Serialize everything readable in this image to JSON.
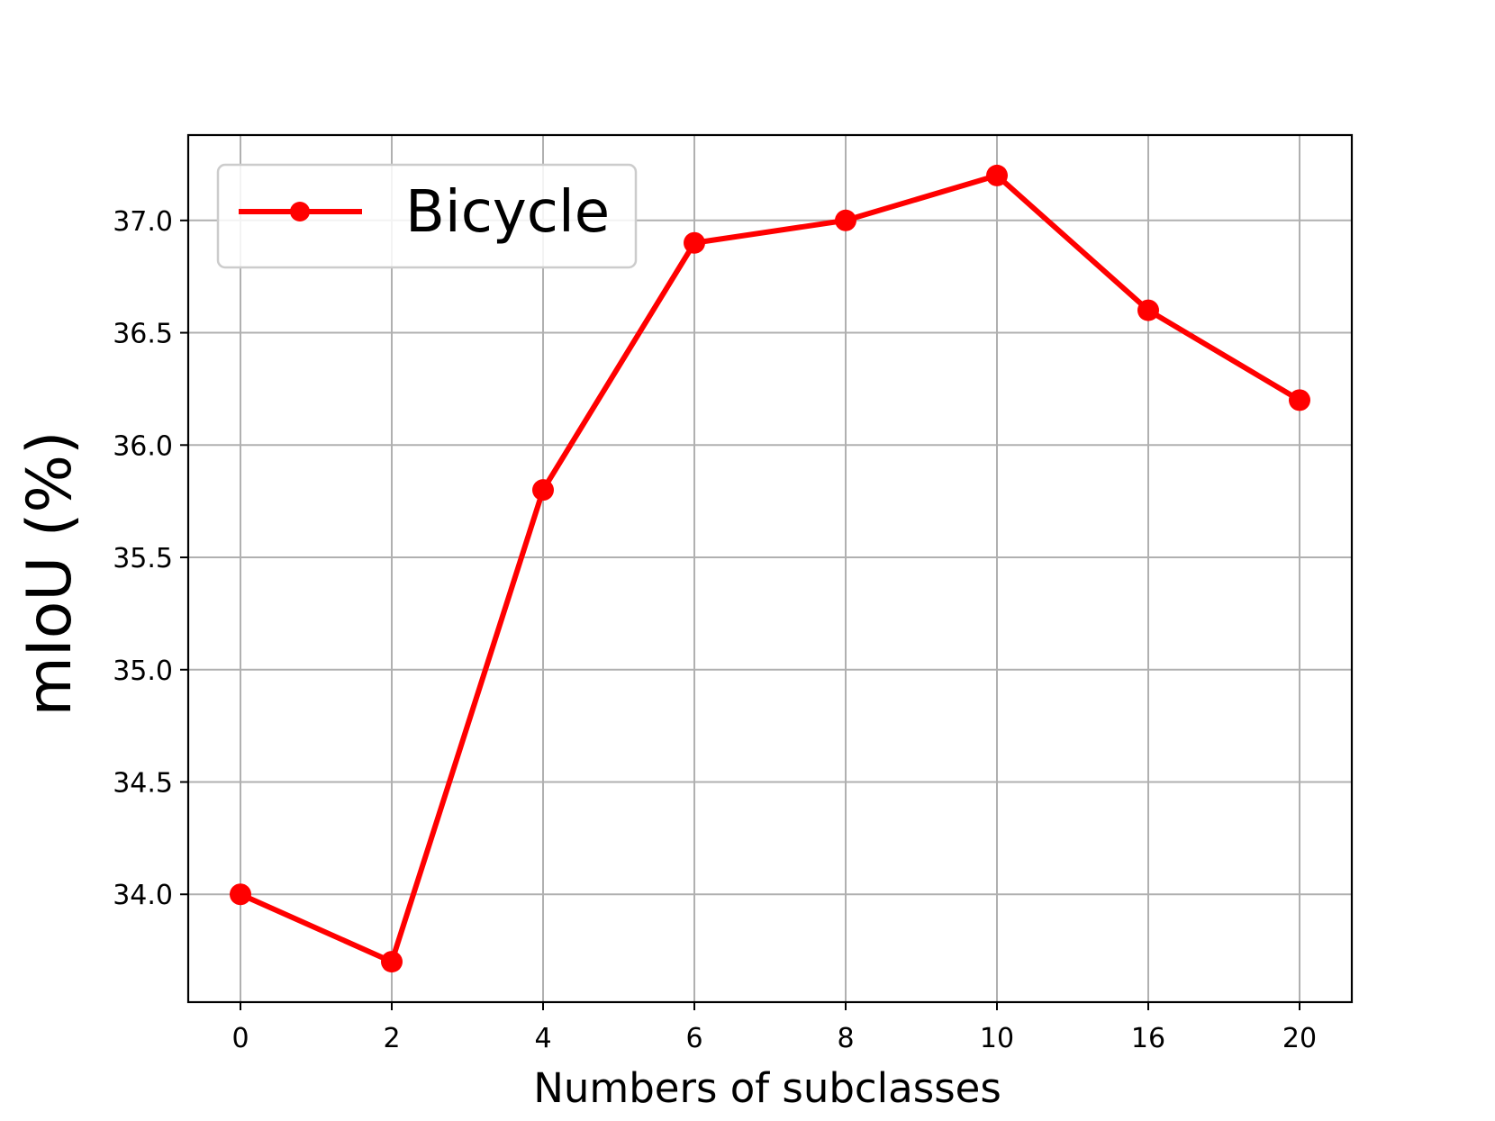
{
  "chart_data": {
    "type": "line",
    "categories": [
      "0",
      "2",
      "4",
      "6",
      "8",
      "10",
      "16",
      "20"
    ],
    "series": [
      {
        "name": "Bicycle",
        "color": "#ff0000",
        "marker": "circle",
        "values": [
          34.0,
          33.7,
          35.8,
          36.9,
          37.0,
          37.2,
          36.6,
          36.2
        ]
      }
    ],
    "xlabel": "Numbers of subclasses",
    "ylabel": "mIoU (%)",
    "yticks": [
      "34.0",
      "34.5",
      "35.0",
      "35.5",
      "36.0",
      "36.5",
      "37.0"
    ],
    "ylim": [
      33.52,
      37.38
    ],
    "grid": true,
    "legend_position": "upper-left",
    "colors": {
      "grid": "#b0b0b0",
      "axes": "#000000",
      "series": "#ff0000"
    }
  }
}
